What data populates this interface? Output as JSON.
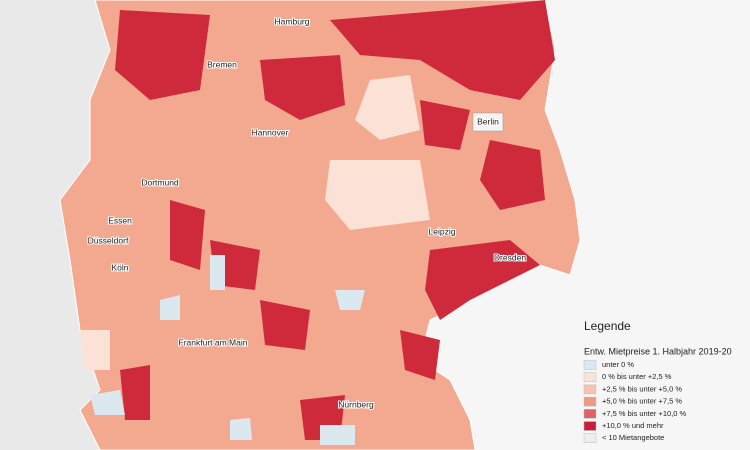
{
  "map": {
    "cities": [
      "Hamburg",
      "Bremen",
      "Berlin",
      "Hannover",
      "Dortmund",
      "Essen",
      "Düsseldorf",
      "Köln",
      "Leipzig",
      "Dresden",
      "Frankfurt am Main",
      "Nürnberg"
    ]
  },
  "legend": {
    "title": "Legende",
    "subtitle": "Entw. Mietpreise 1. Halbjahr 2019-20",
    "items": [
      {
        "label": "unter 0 %",
        "color": "#dbe8f0"
      },
      {
        "label": "0 % bis unter +2,5 %",
        "color": "#fbe3da"
      },
      {
        "label": "+2,5 % bis unter +5,0 %",
        "color": "#f7c3ae"
      },
      {
        "label": "+5,0 % bis unter +7,5 %",
        "color": "#ee9a82"
      },
      {
        "label": "+7,5 % bis unter +10,0 %",
        "color": "#e0606a"
      },
      {
        "label": "+10,0 % und mehr",
        "color": "#c81e36"
      },
      {
        "label": "< 10 Mietangebote",
        "color": "#eeeeee"
      }
    ]
  }
}
